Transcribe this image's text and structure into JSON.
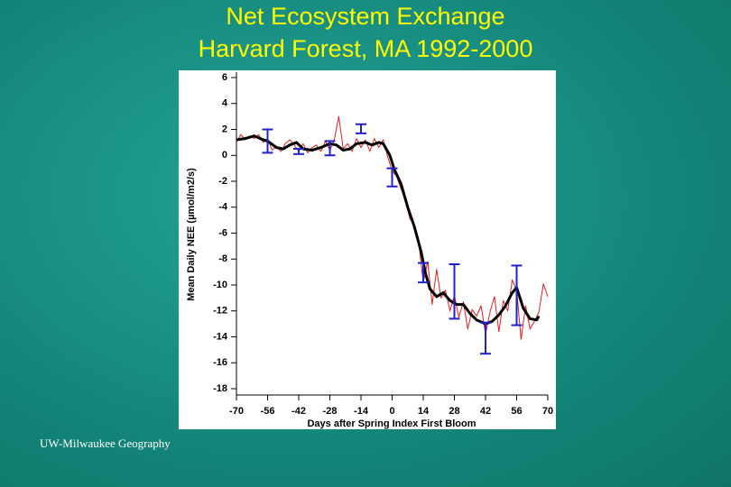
{
  "chart_data": {
    "type": "line",
    "title": "Net Ecosystem Exchange",
    "subtitle": "Harvard Forest, MA  1992-2000",
    "xlabel": "Days after Spring Index First Bloom",
    "ylabel": "Mean Daily NEE (µmol/m2/s)",
    "xlim": [
      -70,
      70
    ],
    "xticks": [
      -70,
      -56,
      -42,
      -28,
      -14,
      0,
      14,
      28,
      42,
      56,
      70
    ],
    "ylim": [
      -18,
      6
    ],
    "yticks": [
      6,
      4,
      2,
      0,
      -2,
      -4,
      -6,
      -8,
      -10,
      -12,
      -14,
      -16,
      -18
    ],
    "series": [
      {
        "color": "#e02020",
        "x": [
          -70,
          -68,
          -66,
          -64,
          -62,
          -60,
          -58,
          -56,
          -54,
          -52,
          -50,
          -48,
          -46,
          -44,
          -42,
          -40,
          -38,
          -36,
          -34,
          -32,
          -30,
          -28,
          -26,
          -24,
          -22,
          -20,
          -18,
          -16,
          -14,
          -12,
          -10,
          -8,
          -6,
          -4,
          -2,
          0,
          2,
          4,
          6,
          8,
          10,
          12,
          14,
          16,
          18,
          20,
          22,
          24,
          26,
          28,
          30,
          32,
          34,
          36,
          38,
          40,
          42,
          44,
          46,
          48,
          50,
          52,
          54,
          56,
          58,
          60,
          62,
          64,
          66,
          68,
          70
        ],
        "values": [
          1.0,
          1.6,
          1.2,
          1.5,
          1.3,
          1.6,
          1.0,
          1.3,
          0.4,
          0.7,
          0.3,
          0.9,
          1.2,
          0.8,
          0.3,
          0.9,
          0.2,
          0.6,
          0.8,
          0.3,
          1.1,
          0.4,
          1.2,
          3.0,
          0.5,
          0.9,
          0.3,
          1.3,
          0.6,
          1.2,
          0.3,
          1.3,
          0.6,
          1.2,
          -0.1,
          -1.2,
          -1.6,
          -2.6,
          -3.5,
          -4.9,
          -5.3,
          -6.8,
          -9.8,
          -8.2,
          -11.5,
          -8.8,
          -11.0,
          -10.4,
          -12.0,
          -10.8,
          -12.5,
          -11.3,
          -13.4,
          -11.9,
          -12.4,
          -11.6,
          -13.8,
          -12.1,
          -10.9,
          -13.6,
          -11.2,
          -12.0,
          -9.6,
          -10.4,
          -14.2,
          -11.6,
          -13.4,
          -12.8,
          -12.1,
          -9.9,
          -10.9
        ]
      },
      {
        "color": "#000000",
        "x": [
          -70,
          -66,
          -62,
          -58,
          -56,
          -52,
          -49,
          -46,
          -43,
          -40,
          -36,
          -32,
          -28,
          -25,
          -22,
          -19,
          -16,
          -12,
          -9,
          -6,
          -4,
          -1,
          1,
          4,
          7,
          10,
          13,
          15,
          17,
          20,
          23,
          26,
          29,
          32,
          35,
          38,
          42,
          45,
          48,
          51,
          54,
          56,
          59,
          62,
          65,
          66
        ],
        "values": [
          1.2,
          1.3,
          1.5,
          1.2,
          1.1,
          0.6,
          0.5,
          0.8,
          1.0,
          0.5,
          0.4,
          0.6,
          0.9,
          0.8,
          0.4,
          0.5,
          0.9,
          1.0,
          0.8,
          1.0,
          0.9,
          0.0,
          -1.1,
          -2.2,
          -4.0,
          -5.5,
          -7.4,
          -9.1,
          -10.3,
          -10.9,
          -10.6,
          -11.2,
          -11.5,
          -11.5,
          -12.2,
          -12.7,
          -13.0,
          -12.8,
          -12.3,
          -11.6,
          -10.6,
          -10.2,
          -11.8,
          -12.6,
          -12.7,
          -12.4
        ]
      }
    ],
    "error_bars": {
      "color": "#2020d0",
      "x": [
        -56,
        -42,
        -28,
        -14,
        0,
        14,
        28,
        42,
        56
      ],
      "values": [
        1.1,
        0.3,
        0.55,
        2.05,
        -1.7,
        -9.05,
        -10.5,
        -14.1,
        -10.8
      ],
      "errors": [
        0.9,
        0.2,
        0.55,
        0.35,
        0.7,
        0.75,
        2.1,
        1.2,
        2.3
      ]
    }
  },
  "footer": "UW-Milwaukee Geography"
}
